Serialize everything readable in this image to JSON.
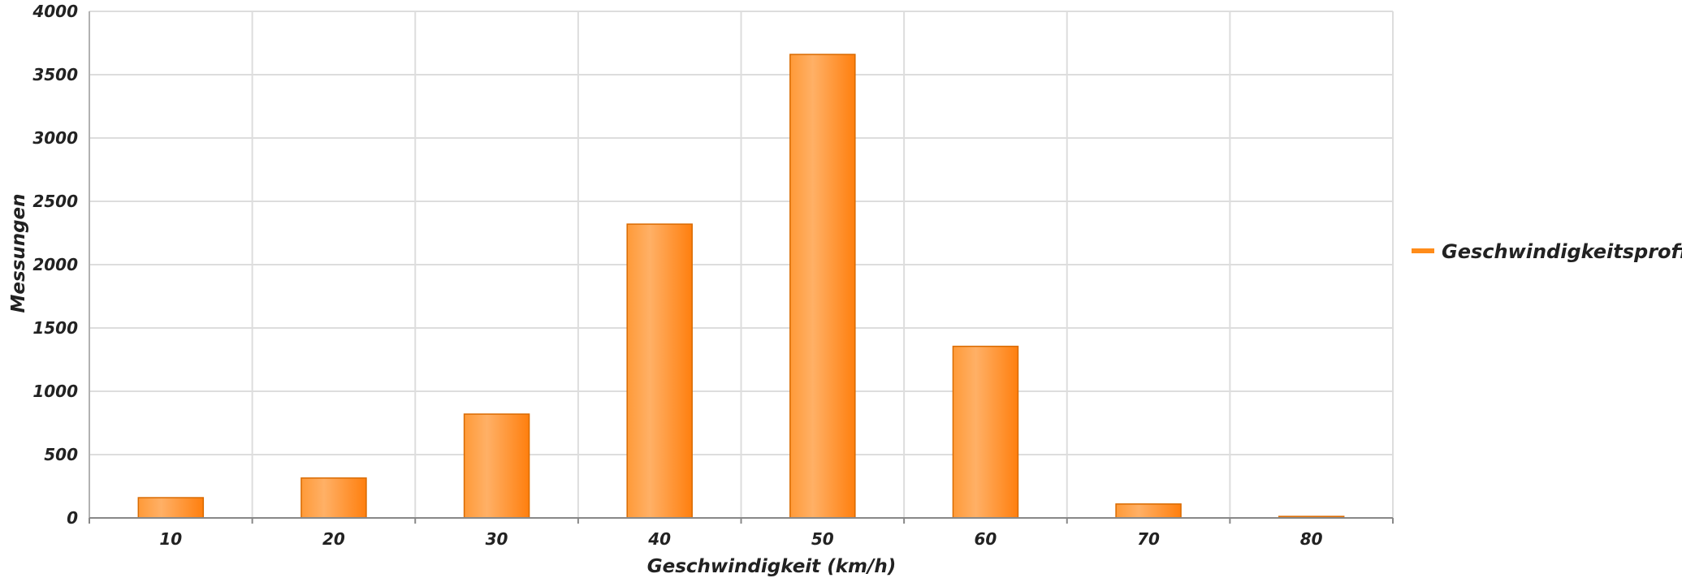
{
  "chart_data": {
    "type": "bar",
    "title": "",
    "categories": [
      "10",
      "20",
      "30",
      "40",
      "50",
      "60",
      "70",
      "80"
    ],
    "series": [
      {
        "name": "Geschwindigkeitsprofi",
        "values": [
          160,
          315,
          820,
          2320,
          3660,
          1355,
          110,
          12
        ]
      }
    ],
    "xlabel": "Geschwindigkeit (km/h)",
    "ylabel": "Messungen",
    "ylim": [
      0,
      4000
    ],
    "yticks": [
      0,
      500,
      1000,
      1500,
      2000,
      2500,
      3000,
      3500,
      4000
    ],
    "grid": true,
    "legend_position": "right",
    "colors": {
      "bar": "#ff8c1a",
      "bar_light": "#ffb066",
      "bar_edge": "#d96a00",
      "grid": "#dddddd",
      "axis": "#888888"
    }
  }
}
